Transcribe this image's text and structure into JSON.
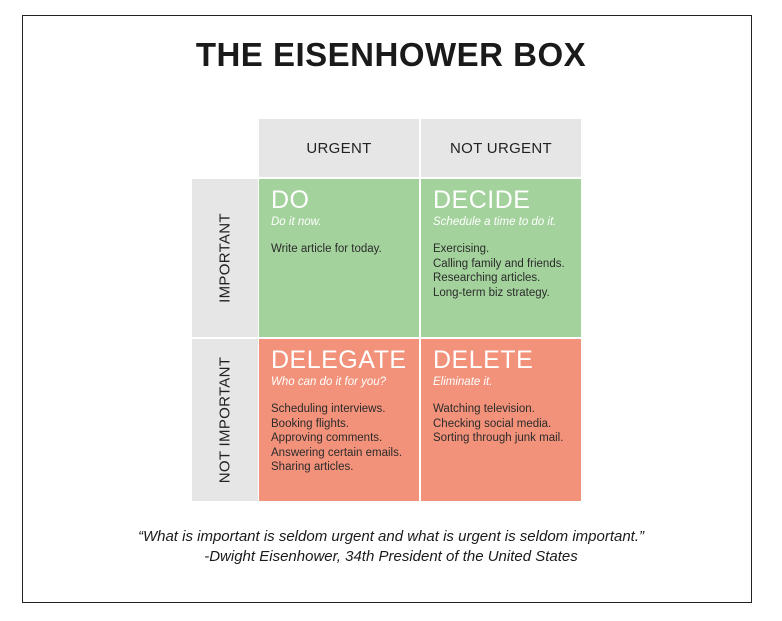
{
  "title": "THE EISENHOWER BOX",
  "columns": [
    "URGENT",
    "NOT URGENT"
  ],
  "rows": [
    "IMPORTANT",
    "NOT IMPORTANT"
  ],
  "quadrants": {
    "do": {
      "title": "DO",
      "subtitle": "Do it now.",
      "items": [
        "Write article for today."
      ],
      "color": "#a3d29c"
    },
    "decide": {
      "title": "DECIDE",
      "subtitle": "Schedule a time to do it.",
      "items": [
        "Exercising.",
        "Calling family and friends.",
        "Researching articles.",
        "Long-term biz strategy."
      ],
      "color": "#a3d29c"
    },
    "delegate": {
      "title": "DELEGATE",
      "subtitle": "Who can do it for you?",
      "items": [
        "Scheduling interviews.",
        "Booking flights.",
        "Approving comments.",
        "Answering certain emails.",
        "Sharing articles."
      ],
      "color": "#f3927a"
    },
    "delete": {
      "title": "DELETE",
      "subtitle": "Eliminate it.",
      "items": [
        "Watching television.",
        "Checking social media.",
        "Sorting through junk mail."
      ],
      "color": "#f3927a"
    }
  },
  "quote": {
    "text": "“What is important is seldom urgent and what is urgent is seldom important.”",
    "attribution": "-Dwight Eisenhower, 34th President of the United States"
  }
}
